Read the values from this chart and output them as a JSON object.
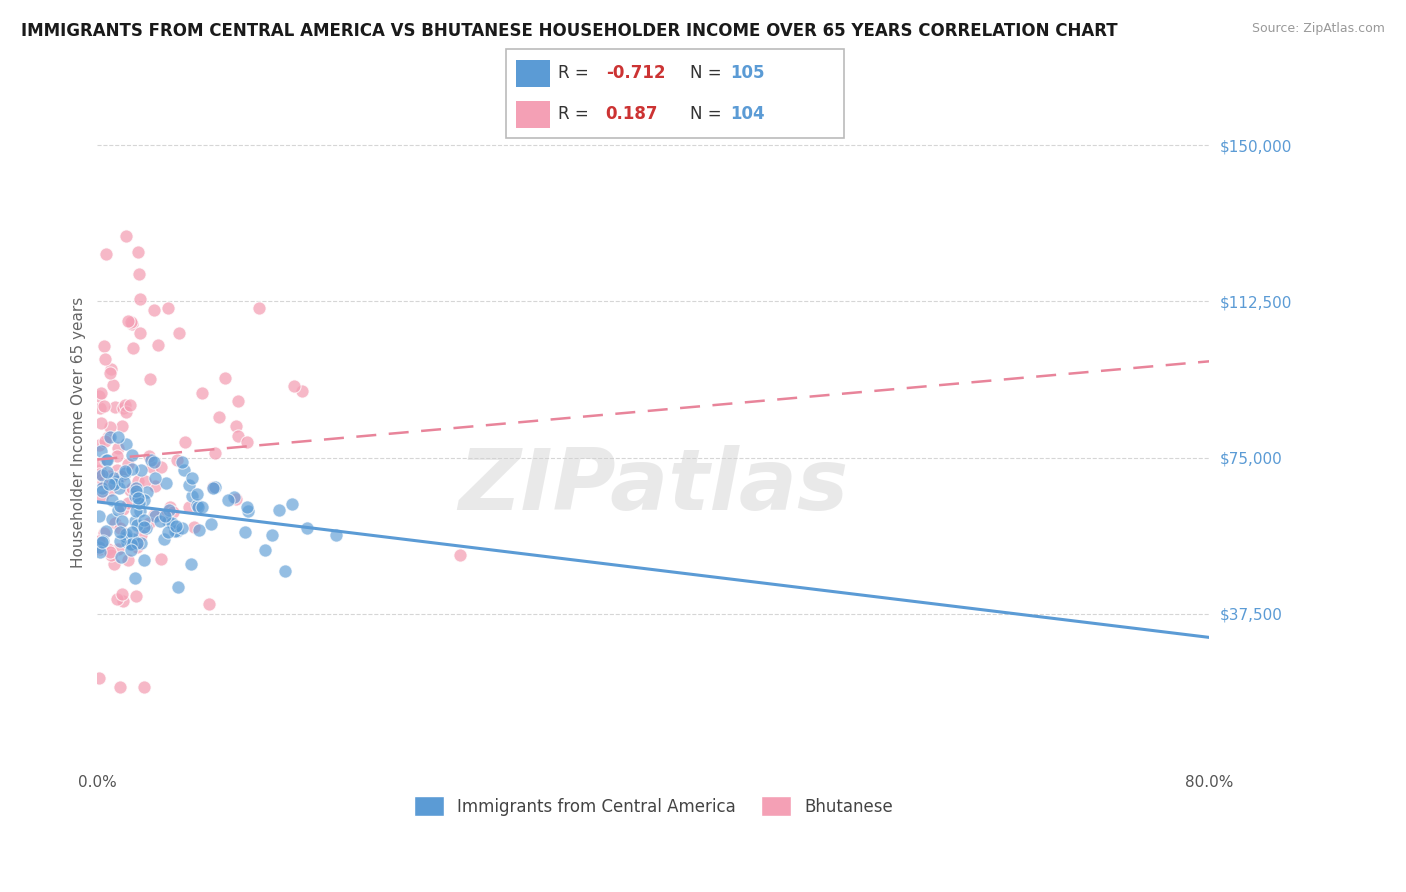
{
  "title": "IMMIGRANTS FROM CENTRAL AMERICA VS BHUTANESE HOUSEHOLDER INCOME OVER 65 YEARS CORRELATION CHART",
  "source": "Source: ZipAtlas.com",
  "ylabel": "Householder Income Over 65 years",
  "xlim": [
    0,
    0.8
  ],
  "ylim": [
    0,
    162000
  ],
  "yticks": [
    37500,
    75000,
    112500,
    150000
  ],
  "ytick_labels": [
    "$37,500",
    "$75,000",
    "$112,500",
    "$150,000"
  ],
  "xticks": [
    0.0,
    0.1,
    0.2,
    0.3,
    0.4,
    0.5,
    0.6,
    0.7,
    0.8
  ],
  "xtick_labels": [
    "0.0%",
    "",
    "",
    "",
    "",
    "",
    "",
    "",
    "80.0%"
  ],
  "blue_color": "#5b9bd5",
  "pink_color": "#f4a0b5",
  "pink_line_color": "#e8849a",
  "blue_R": -0.712,
  "blue_N": 105,
  "pink_R": 0.187,
  "pink_N": 104,
  "blue_label": "Immigrants from Central America",
  "pink_label": "Bhutanese",
  "watermark": "ZIPatlas",
  "background_color": "#ffffff",
  "grid_color": "#cccccc",
  "title_fontsize": 12,
  "axis_label_fontsize": 11,
  "tick_fontsize": 11
}
